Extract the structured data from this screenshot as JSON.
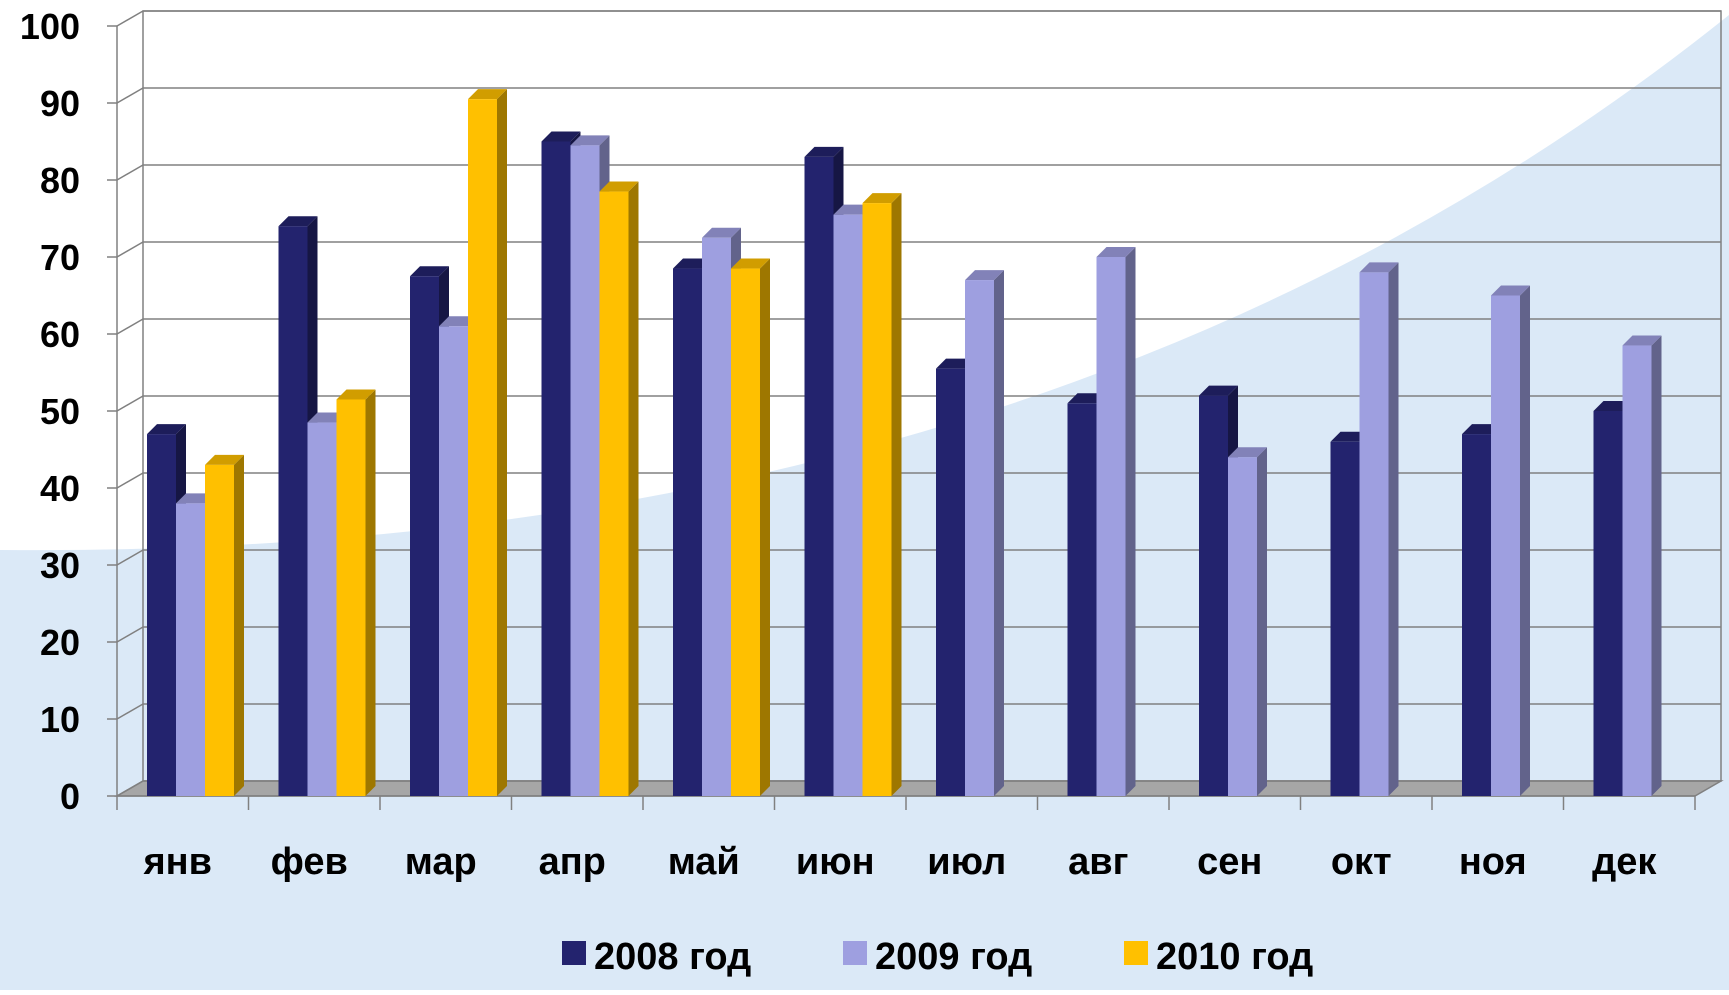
{
  "chart_data": {
    "type": "bar",
    "title": "",
    "xlabel": "",
    "ylabel": "",
    "ylim": [
      0,
      100
    ],
    "yticks": [
      "0",
      "10",
      "20",
      "30",
      "40",
      "50",
      "60",
      "70",
      "80",
      "90",
      "100"
    ],
    "categories": [
      "янв",
      "фев",
      "мар",
      "апр",
      "май",
      "июн",
      "июл",
      "авг",
      "сен",
      "окт",
      "ноя",
      "дек"
    ],
    "series": [
      {
        "name": "2008 год",
        "color": "#23236e",
        "values": [
          47,
          74,
          67.5,
          85,
          68.5,
          83,
          55.5,
          51,
          52,
          46,
          47,
          50
        ]
      },
      {
        "name": "2009 год",
        "color": "#9e9fe0",
        "values": [
          38,
          48.5,
          61,
          84.5,
          72.5,
          75.5,
          67,
          70,
          44,
          68,
          65,
          58.5
        ]
      },
      {
        "name": "2010 год",
        "color": "#ffc000",
        "values": [
          43,
          51.5,
          90.5,
          78.5,
          68.5,
          77,
          null,
          null,
          null,
          null,
          null,
          null
        ]
      }
    ],
    "legend_position": "bottom",
    "grid": true,
    "style": "3d-clustered-bar"
  }
}
